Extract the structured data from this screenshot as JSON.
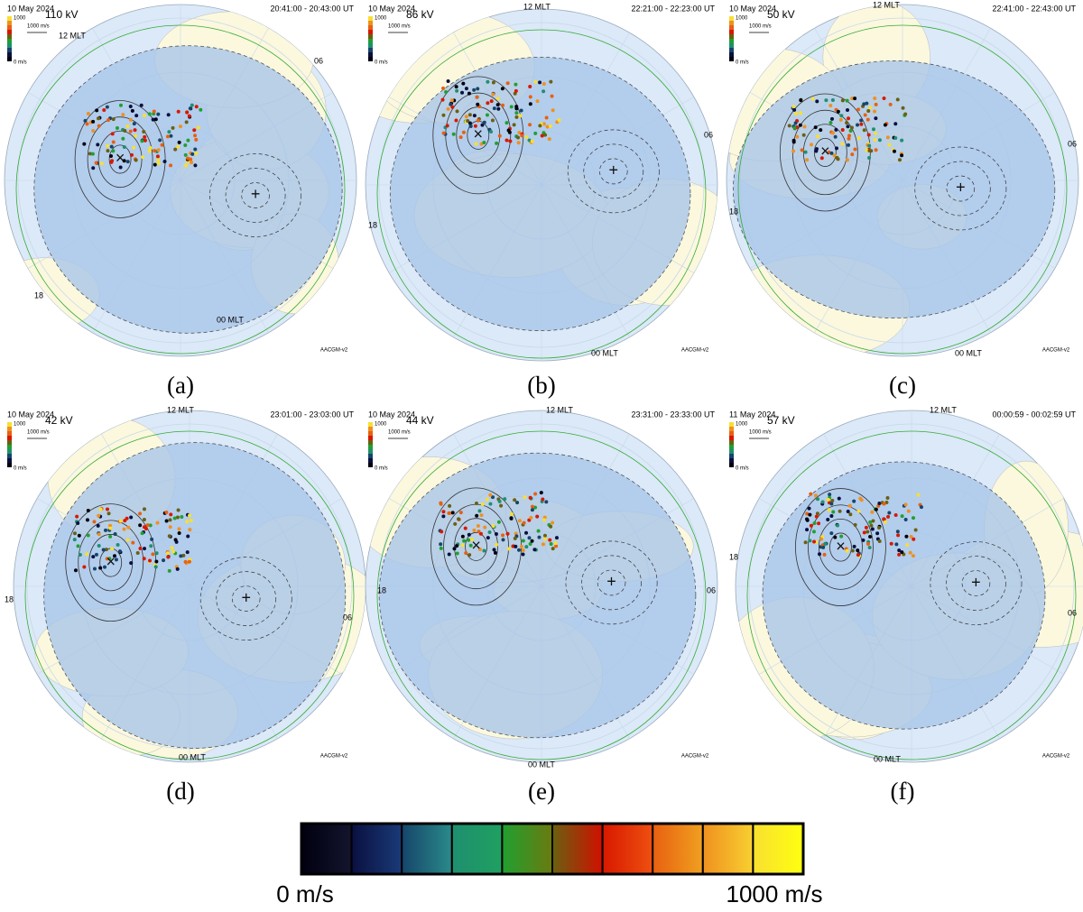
{
  "panels": [
    {
      "caption": "(a)",
      "date": "10  May  2024",
      "potential": "110 kV",
      "time": "20:41:00  -  20:43:00  UT",
      "scale_max": "1000",
      "scale_vector": "1000 m/s",
      "scale_min": "0 m/s",
      "mlt_noon": "12 MLT",
      "mlt_dawn": "06",
      "mlt_dusk": "18",
      "mlt_midnight": "00 MLT",
      "coords": "AACGM-v2"
    },
    {
      "caption": "(b)",
      "date": "10  May  2024",
      "potential": "86 kV",
      "time": "22:21:00  -  22:23:00  UT",
      "scale_max": "1000",
      "scale_vector": "1000 m/s",
      "scale_min": "0 m/s",
      "mlt_noon": "12 MLT",
      "mlt_dawn": "06",
      "mlt_dusk": "18",
      "mlt_midnight": "00 MLT",
      "coords": "AACGM-v2"
    },
    {
      "caption": "(c)",
      "date": "10  May  2024",
      "potential": "50 kV",
      "time": "22:41:00  -  22:43:00  UT",
      "scale_max": "1000",
      "scale_vector": "1000 m/s",
      "scale_min": "0 m/s",
      "mlt_noon": "12 MLT",
      "mlt_dawn": "06",
      "mlt_dusk": "18",
      "mlt_midnight": "00 MLT",
      "coords": "AACGM-v2"
    },
    {
      "caption": "(d)",
      "date": "10  May  2024",
      "potential": "42 kV",
      "time": "23:01:00  -  23:03:00  UT",
      "scale_max": "1000",
      "scale_vector": "1000 m/s",
      "scale_min": "0 m/s",
      "mlt_noon": "12 MLT",
      "mlt_dawn": "06",
      "mlt_dusk": "18",
      "mlt_midnight": "00 MLT",
      "coords": "AACGM-v2"
    },
    {
      "caption": "(e)",
      "date": "10  May  2024",
      "potential": "44 kV",
      "time": "23:31:00  -  23:33:00  UT",
      "scale_max": "1000",
      "scale_vector": "1000 m/s",
      "scale_min": "0 m/s",
      "mlt_noon": "12 MLT",
      "mlt_dawn": "06",
      "mlt_dusk": "18",
      "mlt_midnight": "00 MLT",
      "coords": "AACGM-v2"
    },
    {
      "caption": "(f)",
      "date": "11  May  2024",
      "potential": "57 kV",
      "time": "00:00:59  -  00:02:59  UT",
      "scale_max": "1000",
      "scale_vector": "1000 m/s",
      "scale_min": "0 m/s",
      "mlt_noon": "12 MLT",
      "mlt_dawn": "06",
      "mlt_dusk": "18",
      "mlt_midnight": "00 MLT",
      "coords": "AACGM-v2"
    }
  ],
  "colorbar": {
    "min_label": "0 m/s",
    "max_label": "1000 m/s",
    "colors": [
      [
        "#000010",
        "#14142e"
      ],
      [
        "#0a1040",
        "#1a3a78"
      ],
      [
        "#16456a",
        "#2a8a8a"
      ],
      [
        "#1f8f70",
        "#1fa060"
      ],
      [
        "#20a030",
        "#6a7a10"
      ],
      [
        "#6a6010",
        "#d01000"
      ],
      [
        "#d81800",
        "#ee5010"
      ],
      [
        "#e86010",
        "#f0a020"
      ],
      [
        "#f09020",
        "#f8d030"
      ],
      [
        "#f8e030",
        "#ffff10"
      ]
    ]
  }
}
